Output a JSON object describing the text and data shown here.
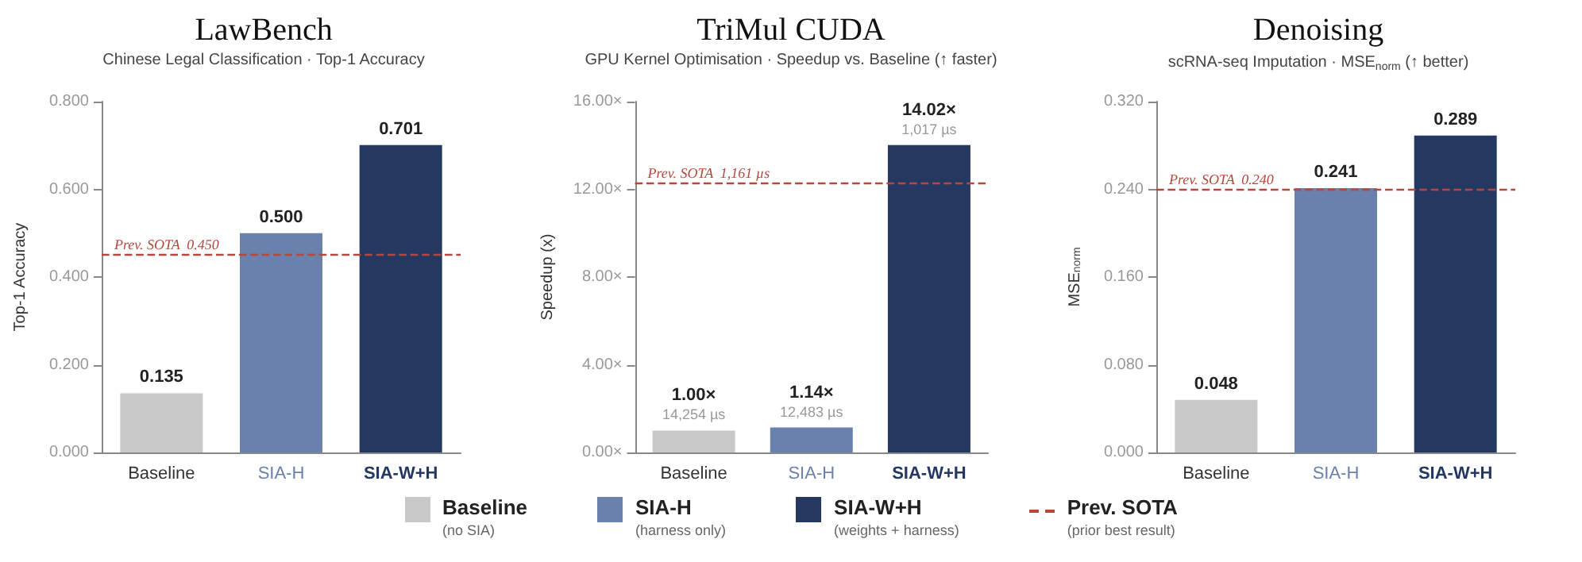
{
  "chart_data": [
    {
      "type": "bar",
      "title": "LawBench",
      "subtitle": "Chinese Legal Classification · Top-1 Accuracy",
      "ylabel": "Top-1 Accuracy",
      "categories": [
        "Baseline",
        "SIA-H",
        "SIA-W+H"
      ],
      "series": [
        {
          "name": "Baseline",
          "color": "#c8c8c8",
          "values": [
            0.135,
            null,
            null
          ],
          "value_labels": [
            "0.135",
            null,
            null
          ]
        },
        {
          "name": "SIA-H",
          "color": "#6a80ad",
          "values": [
            null,
            0.5,
            null
          ],
          "value_labels": [
            null,
            "0.500",
            null
          ]
        },
        {
          "name": "SIA-W+H",
          "color": "#243862",
          "values": [
            null,
            null,
            0.701
          ],
          "value_labels": [
            null,
            null,
            "0.701"
          ]
        }
      ],
      "ylim": [
        0,
        0.8
      ],
      "yticks": [
        {
          "value": 0,
          "label": "0.000"
        },
        {
          "value": 0.2,
          "label": "0.200"
        },
        {
          "value": 0.4,
          "label": "0.400"
        },
        {
          "value": 0.6,
          "label": "0.600"
        },
        {
          "value": 0.8,
          "label": "0.800"
        }
      ],
      "ref_lines": [
        {
          "axis": "y",
          "value": 0.45,
          "label": "Prev. SOTA  0.450",
          "color": "#b5473d",
          "line_style": "dashed"
        }
      ],
      "grid": false,
      "legend": "bottom",
      "annotations": [
        "(no SIA)",
        "(harness only)",
        "(weights + harness)",
        "Prev. SOTA",
        "(prior best result)"
      ]
    },
    {
      "type": "bar",
      "title": "TriMul CUDA",
      "subtitle": "GPU Kernel Optimisation · Speedup vs. Baseline (↑ faster)",
      "ylabel": "Speedup (x)",
      "categories": [
        "Baseline",
        "SIA-H",
        "SIA-W+H"
      ],
      "series": [
        {
          "name": "Baseline",
          "color": "#c8c8c8",
          "values": [
            1.0,
            null,
            null
          ],
          "value_labels": [
            "1.00×",
            null,
            null
          ]
        },
        {
          "name": "SIA-H",
          "color": "#6a80ad",
          "values": [
            null,
            1.14,
            null
          ],
          "value_labels": [
            null,
            "1.14×",
            null
          ]
        },
        {
          "name": "SIA-W+H",
          "color": "#243862",
          "values": [
            null,
            null,
            14.02
          ],
          "value_labels": [
            null,
            null,
            "14.02×"
          ]
        }
      ],
      "ylim": [
        0,
        16
      ],
      "yticks": [
        {
          "value": 0,
          "label": "0.00×"
        },
        {
          "value": 4,
          "label": "4.00×"
        },
        {
          "value": 8,
          "label": "8.00×"
        },
        {
          "value": 12,
          "label": "12.00×"
        },
        {
          "value": 16,
          "label": "16.00×"
        }
      ],
      "ref_lines": [
        {
          "axis": "y",
          "value": 12.28,
          "label": "Prev. SOTA  1,161 µs",
          "color": "#b5473d",
          "line_style": "dashed"
        }
      ],
      "grid": false,
      "annotations": [
        {
          "text": "14,254 µs",
          "x": "Baseline",
          "y": 1.0
        },
        {
          "text": "12,483 µs",
          "x": "SIA-H",
          "y": 1.14
        },
        {
          "text": "1,017 µs",
          "x": "SIA-W+H",
          "y": 14.02
        }
      ]
    },
    {
      "type": "bar",
      "title": "Denoising",
      "subtitle": "scRNA-seq Imputation · MSE$_{norm}$ (↑ better)",
      "ylabel": "MSE$_{norm}$",
      "categories": [
        "Baseline",
        "SIA-H",
        "SIA-W+H"
      ],
      "series": [
        {
          "name": "Baseline",
          "color": "#c8c8c8",
          "values": [
            0.048,
            null,
            null
          ],
          "value_labels": [
            "0.048",
            null,
            null
          ]
        },
        {
          "name": "SIA-H",
          "color": "#6a80ad",
          "values": [
            null,
            0.241,
            null
          ],
          "value_labels": [
            null,
            "0.241",
            null
          ]
        },
        {
          "name": "SIA-W+H",
          "color": "#243862",
          "values": [
            null,
            null,
            0.289
          ],
          "value_labels": [
            null,
            null,
            "0.289"
          ]
        }
      ],
      "ylim": [
        0,
        0.32
      ],
      "yticks": [
        {
          "value": 0,
          "label": "0.000"
        },
        {
          "value": 0.08,
          "label": "0.080"
        },
        {
          "value": 0.16,
          "label": "0.160"
        },
        {
          "value": 0.24,
          "label": "0.240"
        },
        {
          "value": 0.32,
          "label": "0.320"
        }
      ],
      "ref_lines": [
        {
          "axis": "y",
          "value": 0.24,
          "label": "Prev. SOTA  0.240",
          "color": "#b5473d",
          "line_style": "dashed"
        }
      ],
      "grid": false
    }
  ]
}
